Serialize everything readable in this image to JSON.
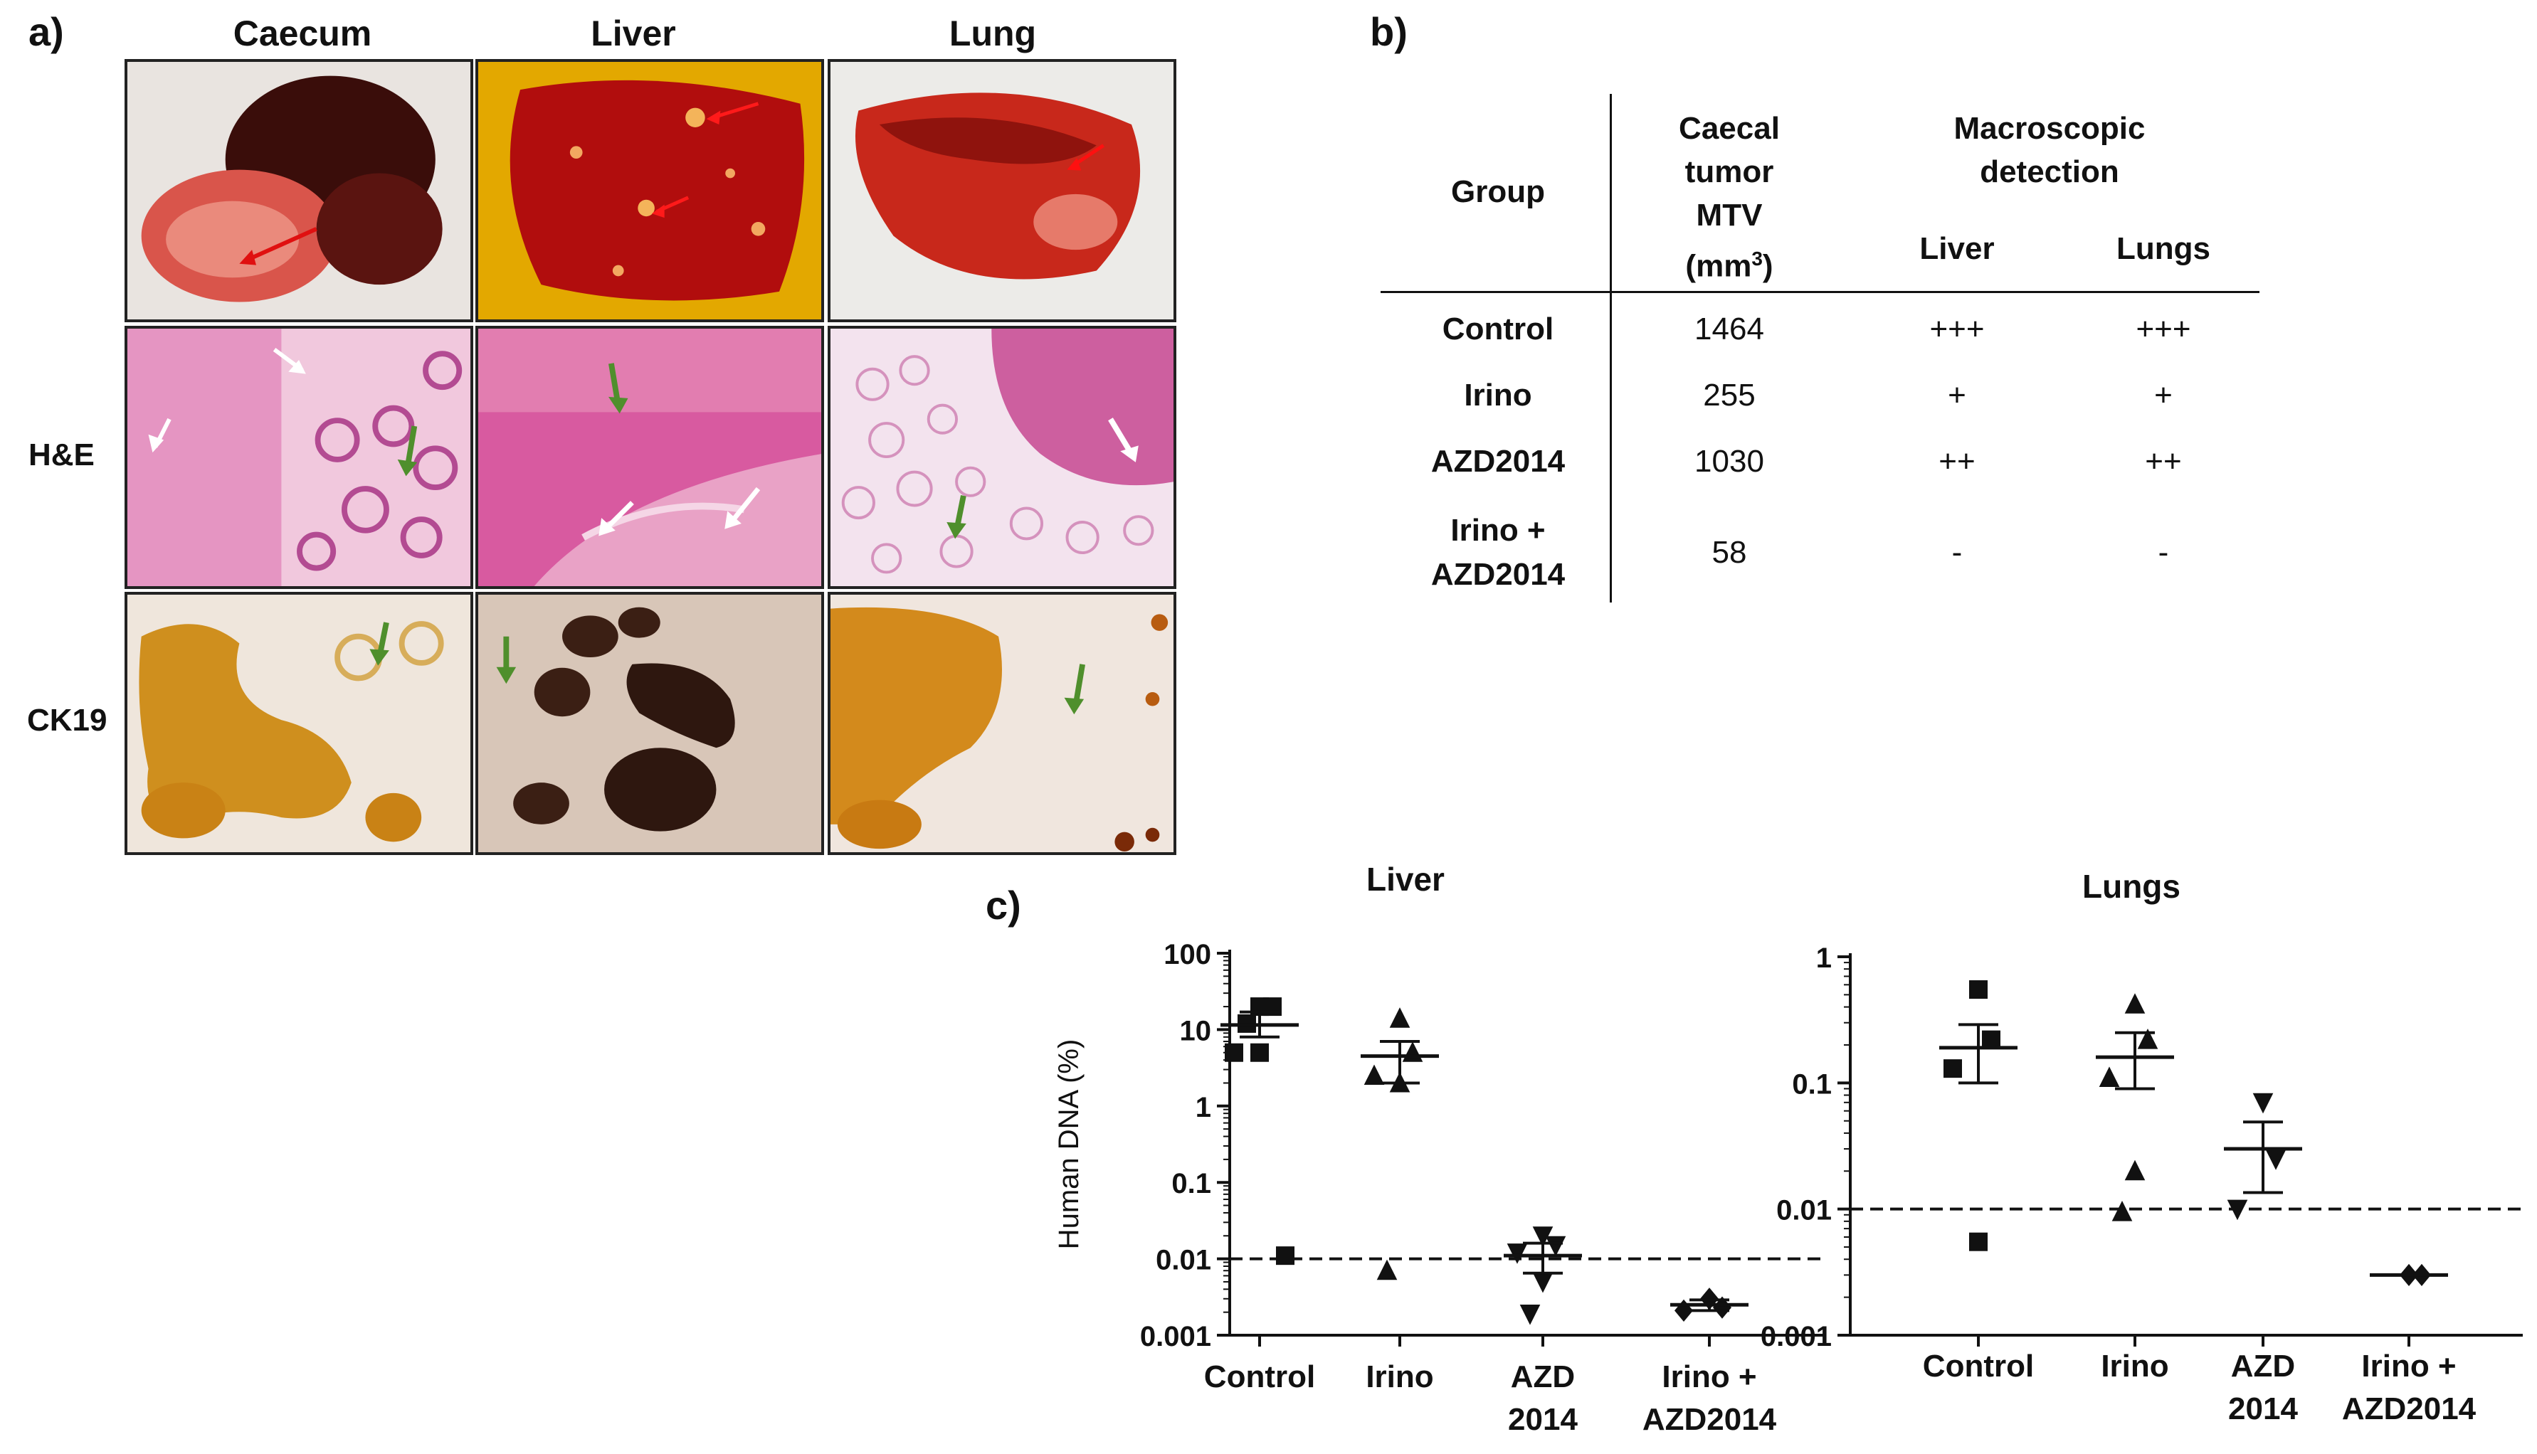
{
  "panel_a": {
    "letter": "a)",
    "columns": [
      "Caecum",
      "Liver",
      "Lung"
    ],
    "rows": [
      "H&E",
      "CK19"
    ],
    "photos": [
      {
        "name": "caecum-macroscopic-photo",
        "arrow": "red"
      },
      {
        "name": "liver-macroscopic-photo",
        "arrow": "red"
      },
      {
        "name": "lung-macroscopic-photo",
        "arrow": "red"
      },
      {
        "name": "caecum-he-micrograph",
        "arrow": "white"
      },
      {
        "name": "liver-he-micrograph",
        "arrow": "white"
      },
      {
        "name": "lung-he-micrograph",
        "arrow": "white"
      },
      {
        "name": "caecum-ck19-micrograph",
        "arrow": "green"
      },
      {
        "name": "liver-ck19-micrograph",
        "arrow": "green"
      },
      {
        "name": "lung-ck19-micrograph",
        "arrow": "green"
      }
    ]
  },
  "panel_b": {
    "letter": "b)",
    "header": {
      "group": "Group",
      "mtv_lines": [
        "Caecal",
        "tumor",
        "MTV"
      ],
      "mtv_unit_base": "(mm",
      "mtv_unit_sup": "3",
      "mtv_unit_close": ")",
      "macro_lines": [
        "Macroscopic",
        "detection"
      ],
      "liver": "Liver",
      "lungs": "Lungs"
    },
    "rows": [
      {
        "group_lines": [
          "Control"
        ],
        "mtv": "1464",
        "liver": "+++",
        "lungs": "+++"
      },
      {
        "group_lines": [
          "Irino"
        ],
        "mtv": "255",
        "liver": "+",
        "lungs": "+"
      },
      {
        "group_lines": [
          "AZD2014"
        ],
        "mtv": "1030",
        "liver": "++",
        "lungs": "++"
      },
      {
        "group_lines": [
          "Irino +",
          "AZD2014"
        ],
        "mtv": "58",
        "liver": "-",
        "lungs": "-"
      }
    ]
  },
  "panel_c": {
    "letter": "c)"
  },
  "chart_data": [
    {
      "type": "scatter",
      "title": "Liver",
      "xlabel": "",
      "ylabel": "Human DNA (%)",
      "y_scale": "log",
      "ylim": [
        0.001,
        100
      ],
      "y_ticks": [
        "0.001",
        "0.01",
        "0.1",
        "1",
        "10",
        "100"
      ],
      "threshold": 0.01,
      "categories": [
        {
          "label_lines": [
            "Control"
          ],
          "marker": "square",
          "points": [
            20,
            20,
            5,
            5,
            12,
            0.011
          ],
          "mean": 11.5,
          "sem": [
            8,
            17
          ]
        },
        {
          "label_lines": [
            "Irino"
          ],
          "marker": "triangle-up",
          "points": [
            14,
            5,
            2.5,
            2,
            0.007
          ],
          "mean": 4.5,
          "sem": [
            2,
            7
          ]
        },
        {
          "label_lines": [
            "AZD",
            "2014"
          ],
          "marker": "triangle-down",
          "points": [
            0.02,
            0.015,
            0.012,
            0.005,
            0.0019
          ],
          "mean": 0.011,
          "sem": [
            0.0065,
            0.016
          ]
        },
        {
          "label_lines": [
            "Irino +",
            "AZD2014"
          ],
          "marker": "diamond",
          "points": [
            0.003,
            0.0023,
            0.0021
          ],
          "mean": 0.0025,
          "sem": [
            0.0021,
            0.0029
          ]
        }
      ]
    },
    {
      "type": "scatter",
      "title": "Lungs",
      "xlabel": "",
      "ylabel": "",
      "y_scale": "log",
      "ylim": [
        0.001,
        1
      ],
      "y_ticks": [
        "0.001",
        "0.01",
        "0.1",
        "1"
      ],
      "threshold": 0.01,
      "categories": [
        {
          "label_lines": [
            "Control"
          ],
          "marker": "square",
          "points": [
            0.55,
            0.22,
            0.13,
            0.0055
          ],
          "mean": 0.19,
          "sem": [
            0.1,
            0.29
          ]
        },
        {
          "label_lines": [
            "Irino"
          ],
          "marker": "triangle-up",
          "points": [
            0.42,
            0.22,
            0.11,
            0.02,
            0.0095
          ],
          "mean": 0.16,
          "sem": [
            0.09,
            0.25
          ]
        },
        {
          "label_lines": [
            "AZD",
            "2014"
          ],
          "marker": "triangle-down",
          "points": [
            0.07,
            0.025,
            0.01
          ],
          "mean": 0.03,
          "sem": [
            0.0135,
            0.049
          ]
        },
        {
          "label_lines": [
            "Irino +",
            "AZD2014"
          ],
          "marker": "diamond",
          "points": [
            0.003,
            0.003
          ],
          "mean": 0.003,
          "sem": [
            0.003,
            0.003
          ]
        }
      ]
    }
  ]
}
